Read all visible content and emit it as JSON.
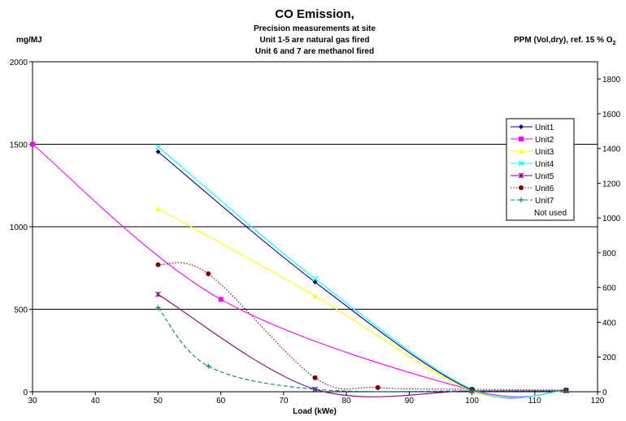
{
  "chart_data": {
    "type": "line",
    "title": "CO Emission,",
    "subtitle": [
      "Precision measurements at site",
      "Unit 1-5 are natural gas fired",
      "Unit 6 and 7 are methanol fired"
    ],
    "ylabel_left": "mg/MJ",
    "ylabel_right_main": "PPM (Vol,dry), ref. 15 % O",
    "ylabel_right_sub": "2",
    "xlabel": "Load (kWe)",
    "xlim": [
      30,
      120
    ],
    "ylim_left": [
      0,
      2000
    ],
    "ylim_right": [
      0,
      1900
    ],
    "xticks": [
      30,
      40,
      50,
      60,
      70,
      80,
      90,
      100,
      110,
      120
    ],
    "yticks_left": [
      0,
      500,
      1000,
      1500,
      2000
    ],
    "yticks_right": [
      0,
      200,
      400,
      600,
      800,
      1000,
      1200,
      1400,
      1600,
      1800
    ],
    "grid_y": [
      500,
      1000,
      1500,
      2000
    ],
    "legend_position": "right",
    "series": [
      {
        "name": "Unit1",
        "color": "#000080",
        "marker": "diamond",
        "dash": "solid",
        "x": [
          50,
          75,
          100,
          115
        ],
        "y": [
          1455,
          665,
          10,
          10
        ]
      },
      {
        "name": "Unit2",
        "color": "#FF00FF",
        "marker": "square",
        "dash": "solid",
        "x": [
          30,
          60,
          100,
          115
        ],
        "y": [
          1500,
          560,
          10,
          10
        ]
      },
      {
        "name": "Unit3",
        "color": "#FFFF00",
        "marker": "triangle",
        "dash": "solid",
        "x": [
          50,
          75,
          100,
          115
        ],
        "y": [
          1110,
          580,
          5,
          5
        ]
      },
      {
        "name": "Unit4",
        "color": "#00FFFF",
        "marker": "x",
        "dash": "solid",
        "x": [
          50,
          75,
          100,
          115
        ],
        "y": [
          1485,
          685,
          15,
          8
        ]
      },
      {
        "name": "Unit5",
        "color": "#800080",
        "marker": "star",
        "dash": "solid",
        "x": [
          50,
          75,
          100,
          115
        ],
        "y": [
          590,
          15,
          5,
          5
        ]
      },
      {
        "name": "Unit6",
        "color": "#800000",
        "marker": "circle",
        "dash": "dot",
        "x": [
          50,
          58,
          75,
          85,
          100,
          115
        ],
        "y": [
          770,
          715,
          85,
          25,
          15,
          10
        ]
      },
      {
        "name": "Unit7",
        "color": "#008080",
        "marker": "plus",
        "dash": "dash",
        "x": [
          50,
          58,
          75,
          100,
          115
        ],
        "y": [
          510,
          155,
          15,
          5,
          5
        ]
      }
    ],
    "legend_extra": "Not used"
  }
}
